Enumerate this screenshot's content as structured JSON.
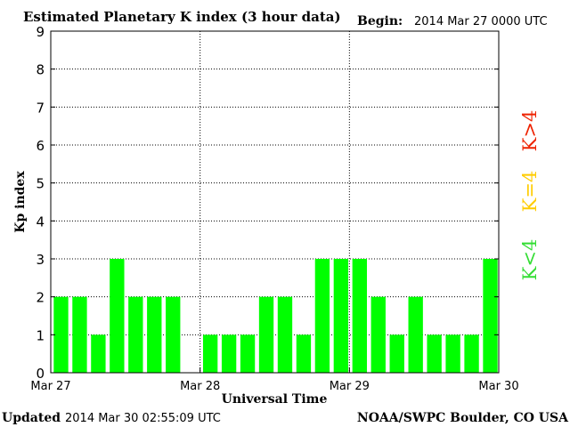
{
  "chart_data": {
    "type": "bar",
    "title": "Estimated Planetary K index (3 hour data)",
    "begin_label": "Begin:",
    "begin_value": "2014 Mar 27 0000 UTC",
    "ylabel": "Kp index",
    "xlabel": "Universal Time",
    "ylim": [
      0,
      9
    ],
    "yticks": [
      "0",
      "1",
      "2",
      "3",
      "4",
      "5",
      "6",
      "7",
      "8",
      "9"
    ],
    "xlim_days": [
      0,
      3
    ],
    "x_tick_labels": [
      "Mar 27",
      "Mar 28",
      "Mar 29",
      "Mar 30"
    ],
    "grid": true,
    "interval_hours": 3,
    "values": [
      2,
      2,
      1,
      3,
      2,
      2,
      2,
      null,
      1,
      1,
      1,
      2,
      2,
      1,
      3,
      3,
      3,
      2,
      1,
      2,
      1,
      1,
      1,
      3
    ],
    "bar_color": "#00ff00",
    "legend": [
      {
        "text": "K<4",
        "color": "#33dd33"
      },
      {
        "text": "K=4",
        "color": "#ffcc00"
      },
      {
        "text": "K>4",
        "color": "#ee2200"
      }
    ],
    "legend_placement": "right"
  },
  "footer": {
    "updated_label": "Updated",
    "updated_value": "2014 Mar 30 02:55:09 UTC",
    "source": "NOAA/SWPC Boulder, CO USA"
  }
}
